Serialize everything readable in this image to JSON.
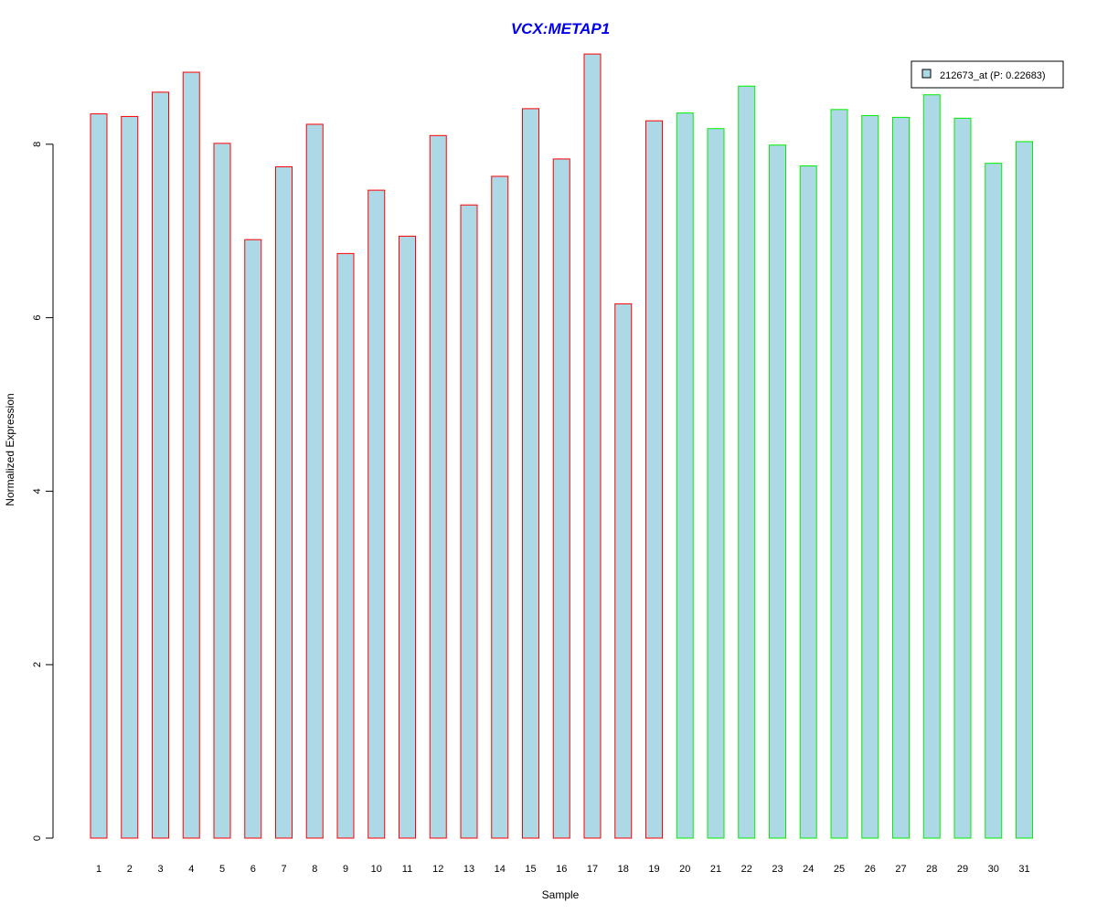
{
  "colors": {
    "title": "#0000ee",
    "bar_fill": "#add8e6",
    "group1_border": "#ff0000",
    "group2_border": "#00ee00",
    "axis": "#000000"
  },
  "chart_data": {
    "type": "bar",
    "title": "VCX:METAP1",
    "xlabel": "Sample",
    "ylabel": "Normalized Expression",
    "ylim": [
      0,
      9
    ],
    "yticks": [
      0,
      2,
      4,
      6,
      8
    ],
    "grid": false,
    "legend_position": "top-right",
    "categories": [
      "1",
      "2",
      "3",
      "4",
      "5",
      "6",
      "7",
      "8",
      "9",
      "10",
      "11",
      "12",
      "13",
      "14",
      "15",
      "16",
      "17",
      "18",
      "19",
      "20",
      "21",
      "22",
      "23",
      "24",
      "25",
      "26",
      "27",
      "28",
      "29",
      "30",
      "31"
    ],
    "series": [
      {
        "name": "212673_at (P: 0.22683)",
        "values": [
          8.35,
          8.32,
          8.6,
          8.83,
          8.01,
          6.9,
          7.74,
          8.23,
          6.74,
          7.47,
          6.94,
          8.1,
          7.3,
          7.63,
          8.41,
          7.83,
          9.04,
          6.16,
          8.27,
          8.36,
          8.18,
          8.67,
          7.99,
          7.75,
          8.4,
          8.33,
          8.31,
          8.57,
          8.3,
          7.78,
          8.03
        ]
      }
    ],
    "groups": [
      {
        "color": "#ff0000",
        "samples": [
          "1",
          "2",
          "3",
          "4",
          "5",
          "6",
          "7",
          "8",
          "9",
          "10",
          "11",
          "12",
          "13",
          "14",
          "15",
          "16",
          "17",
          "18",
          "19"
        ]
      },
      {
        "color": "#00ee00",
        "samples": [
          "20",
          "21",
          "22",
          "23",
          "24",
          "25",
          "26",
          "27",
          "28",
          "29",
          "30",
          "31"
        ]
      }
    ]
  }
}
